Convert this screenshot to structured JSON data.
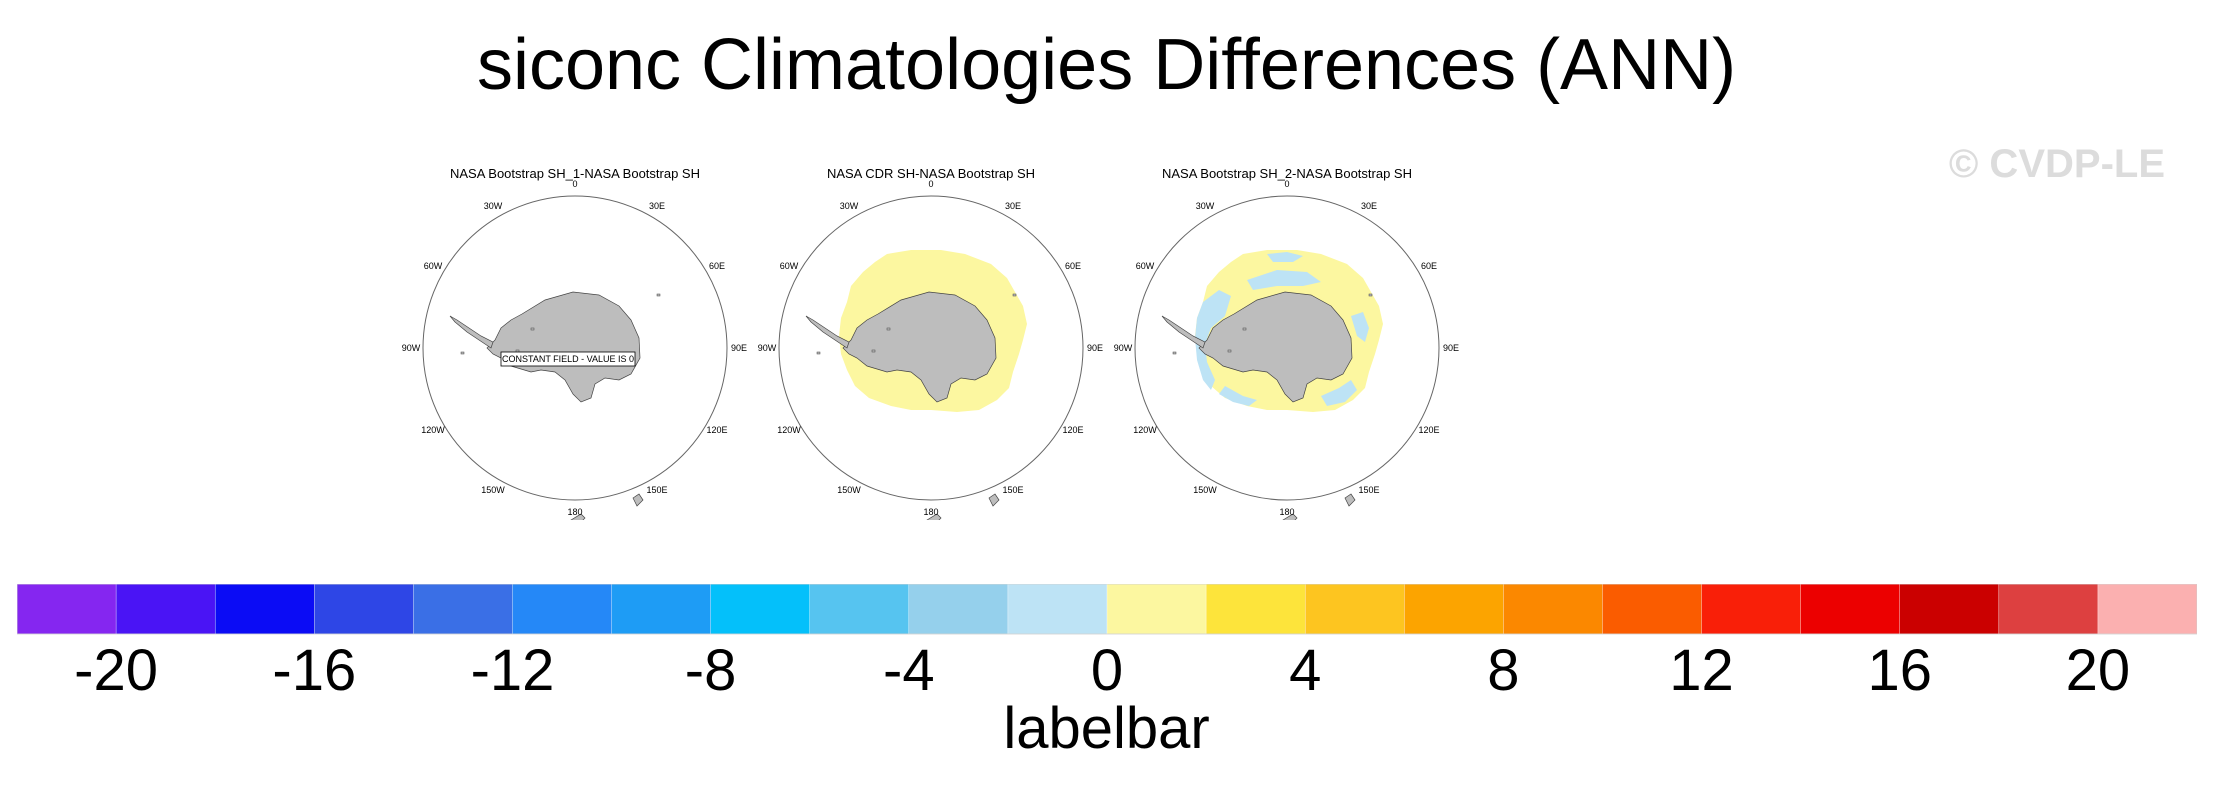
{
  "title": "siconc Climatologies Differences (ANN)",
  "watermark": "© CVDP-LE",
  "panels": [
    {
      "title": "NASA Bootstrap SH_1-NASA Bootstrap SH",
      "constant_field_text": "CONSTANT FIELD - VALUE IS 0"
    },
    {
      "title": "NASA CDR SH-NASA Bootstrap SH"
    },
    {
      "title": "NASA Bootstrap SH_2-NASA Bootstrap SH"
    }
  ],
  "lon_labels": [
    "0",
    "30E",
    "60E",
    "90E",
    "120E",
    "150E",
    "180",
    "150W",
    "120W",
    "90W",
    "60W",
    "30W"
  ],
  "colors": {
    "land": "#bdbdbd",
    "positive_fill": "#fcf7a0",
    "negative_fill": "#bde3f5"
  },
  "chart_data": {
    "type": "heatmap",
    "projection": "south polar stereographic",
    "colorbar": {
      "label": "labelbar",
      "levels": [
        -20,
        -18,
        -16,
        -14,
        -12,
        -10,
        -8,
        -6,
        -4,
        -2,
        0,
        2,
        4,
        6,
        8,
        10,
        12,
        14,
        16,
        18,
        20
      ],
      "tick_labels": [
        "-20",
        "-16",
        "-12",
        "-8",
        "-4",
        "0",
        "4",
        "8",
        "12",
        "16",
        "20"
      ],
      "colors": [
        "#8526f0",
        "#4a14f5",
        "#0b0cf5",
        "#2e46e6",
        "#3a6fe6",
        "#2588f7",
        "#1e9cf5",
        "#04c0fa",
        "#56c4f0",
        "#95d0ec",
        "#bde3f5",
        "#fcf7a0",
        "#fde43b",
        "#fdc520",
        "#fca400",
        "#fb8800",
        "#fa5c00",
        "#f91f08",
        "#ec0000",
        "#cb0000",
        "#dd4040",
        "#fbb0b0"
      ]
    }
  }
}
